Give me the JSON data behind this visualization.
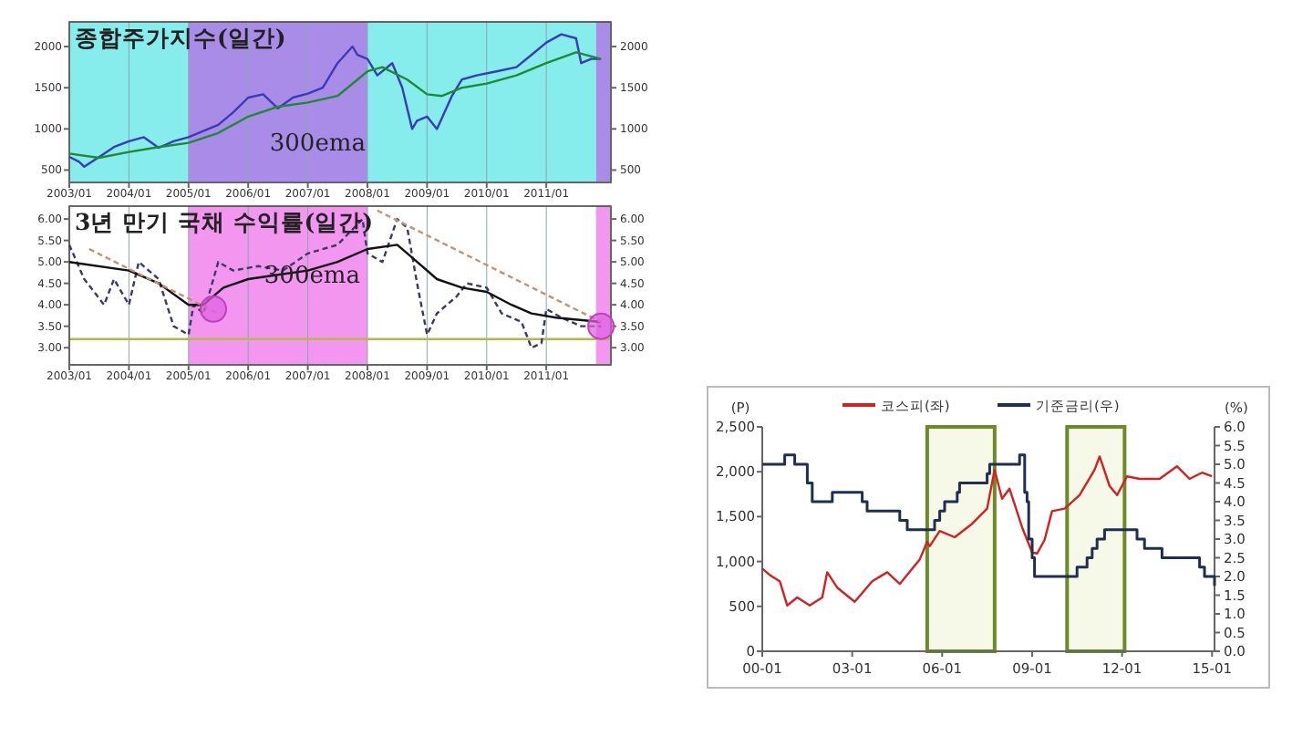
{
  "chart_data": [
    {
      "type": "line",
      "title": "종합주가지수(일간)",
      "xlim": [
        "2003-01",
        "2012-02"
      ],
      "xticks": [
        {
          "value": "2003-01",
          "label": "2003/01"
        },
        {
          "value": "2004-01",
          "label": "2004/01"
        },
        {
          "value": "2005-01",
          "label": "2005/01"
        },
        {
          "value": "2006-01",
          "label": "2006/01"
        },
        {
          "value": "2007-01",
          "label": "2007/01"
        },
        {
          "value": "2008-01",
          "label": "2008/01"
        },
        {
          "value": "2009-01",
          "label": "2009/01"
        },
        {
          "value": "2010-01",
          "label": "2010/01"
        },
        {
          "value": "2011-01",
          "label": "2011/01"
        }
      ],
      "ylim": [
        350,
        2300
      ],
      "yticks": [
        500,
        1000,
        1500,
        2000
      ],
      "y2lim": [
        350,
        2300
      ],
      "y2ticks": [
        500,
        1000,
        1500,
        2000
      ],
      "grid": "x",
      "bands": [
        {
          "axis": "x",
          "from": "2003-01",
          "to": "2005-01",
          "color": "#86ecec"
        },
        {
          "axis": "x",
          "from": "2005-01",
          "to": "2008-01",
          "color": "#a98ce8"
        },
        {
          "axis": "x",
          "from": "2008-01",
          "to": "2011-11",
          "color": "#86ecec"
        },
        {
          "axis": "x",
          "from": "2011-11",
          "to": "2012-02",
          "color": "#a98ce8"
        }
      ],
      "series": [
        {
          "color": "#3b3bb8",
          "x": [
            "2003-01",
            "2003-03",
            "2003-04",
            "2003-08",
            "2003-10",
            "2004-01",
            "2004-04",
            "2004-07",
            "2004-10",
            "2005-01",
            "2005-03",
            "2005-07",
            "2005-10",
            "2006-01",
            "2006-04",
            "2006-07",
            "2006-10",
            "2007-01",
            "2007-04",
            "2007-07",
            "2007-10",
            "2007-11",
            "2008-01",
            "2008-03",
            "2008-06",
            "2008-08",
            "2008-10",
            "2008-11",
            "2009-01",
            "2009-03",
            "2009-06",
            "2009-08",
            "2009-11",
            "2010-03",
            "2010-07",
            "2010-10",
            "2011-01",
            "2011-04",
            "2011-07",
            "2011-08",
            "2011-10",
            "2011-12"
          ],
          "values": [
            660,
            600,
            540,
            700,
            780,
            850,
            900,
            770,
            850,
            900,
            950,
            1050,
            1200,
            1380,
            1420,
            1250,
            1380,
            1430,
            1500,
            1800,
            2000,
            1900,
            1850,
            1650,
            1800,
            1500,
            1000,
            1100,
            1150,
            1000,
            1400,
            1600,
            1650,
            1700,
            1750,
            1900,
            2050,
            2150,
            2100,
            1800,
            1850,
            1850
          ]
        },
        {
          "color": "#1e8a32",
          "x": [
            "2003-01",
            "2003-07",
            "2004-01",
            "2004-07",
            "2005-01",
            "2005-07",
            "2006-01",
            "2006-07",
            "2007-01",
            "2007-07",
            "2008-01",
            "2008-04",
            "2008-09",
            "2009-01",
            "2009-04",
            "2009-08",
            "2010-01",
            "2010-07",
            "2011-01",
            "2011-07",
            "2011-12"
          ],
          "values": [
            700,
            650,
            720,
            780,
            830,
            950,
            1150,
            1270,
            1320,
            1400,
            1700,
            1750,
            1600,
            1420,
            1400,
            1500,
            1550,
            1650,
            1800,
            1930,
            1850
          ]
        }
      ],
      "annotations": [
        "300ema"
      ]
    },
    {
      "type": "line",
      "title": "3년 만기 국채 수익률(일간)",
      "xlim": [
        "2003-01",
        "2012-02"
      ],
      "xticks": [
        {
          "value": "2003-01",
          "label": "2003/01"
        },
        {
          "value": "2004-01",
          "label": "2004/01"
        },
        {
          "value": "2005-01",
          "label": "2005/01"
        },
        {
          "value": "2006-01",
          "label": "2006/01"
        },
        {
          "value": "2007-01",
          "label": "2007/01"
        },
        {
          "value": "2008-01",
          "label": "2008/01"
        },
        {
          "value": "2009-01",
          "label": "2009/01"
        },
        {
          "value": "2010-01",
          "label": "2010/01"
        },
        {
          "value": "2011-01",
          "label": "2011/01"
        }
      ],
      "ylim": [
        2.6,
        6.3
      ],
      "yticks": [
        {
          "value": 3,
          "label": "3.00"
        },
        {
          "value": 3.5,
          "label": "3.50"
        },
        {
          "value": 4,
          "label": "4.00"
        },
        {
          "value": 4.5,
          "label": "4.50"
        },
        {
          "value": 5,
          "label": "5.00"
        },
        {
          "value": 5.5,
          "label": "5.50"
        },
        {
          "value": 6,
          "label": "6.00"
        }
      ],
      "y2lim": [
        2.6,
        6.3
      ],
      "y2ticks": [
        {
          "value": 3,
          "label": "3.00"
        },
        {
          "value": 3.5,
          "label": "3.50"
        },
        {
          "value": 4,
          "label": "4.00"
        },
        {
          "value": 4.5,
          "label": "4.50"
        },
        {
          "value": 5,
          "label": "5.00"
        },
        {
          "value": 5.5,
          "label": "5.50"
        },
        {
          "value": 6,
          "label": "6.00"
        }
      ],
      "grid": "x",
      "bands": [
        {
          "axis": "x",
          "from": "2005-01",
          "to": "2008-01",
          "color": "#f296f0"
        },
        {
          "axis": "x",
          "from": "2011-11",
          "to": "2012-02",
          "color": "#f296f0"
        }
      ],
      "ref_lines": [
        {
          "axis": "y",
          "value": 3.2,
          "color": "#b5b84a"
        }
      ],
      "series": [
        {
          "color": "#3a3a66",
          "line_style": "dashed",
          "x": [
            "2003-01",
            "2003-04",
            "2003-08",
            "2003-10",
            "2004-01",
            "2004-03",
            "2004-07",
            "2004-10",
            "2005-01",
            "2005-02",
            "2005-04",
            "2005-07",
            "2005-10",
            "2006-03",
            "2006-08",
            "2007-01",
            "2007-07",
            "2007-12",
            "2008-01",
            "2008-04",
            "2008-07",
            "2008-09",
            "2008-11",
            "2009-01",
            "2009-03",
            "2009-07",
            "2009-09",
            "2010-01",
            "2010-04",
            "2010-08",
            "2010-10",
            "2010-12",
            "2011-01",
            "2011-04",
            "2011-08",
            "2011-12"
          ],
          "values": [
            5.4,
            4.6,
            4.0,
            4.6,
            4.0,
            5.0,
            4.6,
            3.5,
            3.3,
            4.0,
            3.8,
            5.0,
            4.8,
            4.9,
            4.8,
            5.2,
            5.4,
            6.0,
            5.2,
            5.0,
            6.0,
            5.8,
            4.5,
            3.3,
            3.8,
            4.2,
            4.5,
            4.4,
            3.8,
            3.6,
            3.0,
            3.1,
            3.9,
            3.7,
            3.5,
            3.5
          ]
        },
        {
          "color": "#111111",
          "x": [
            "2003-01",
            "2004-01",
            "2004-07",
            "2005-01",
            "2005-04",
            "2005-08",
            "2006-01",
            "2006-07",
            "2007-01",
            "2007-07",
            "2008-01",
            "2008-07",
            "2008-10",
            "2009-03",
            "2009-08",
            "2010-01",
            "2010-06",
            "2010-10",
            "2011-03",
            "2011-12"
          ],
          "values": [
            5.0,
            4.8,
            4.5,
            4.0,
            4.0,
            4.4,
            4.6,
            4.7,
            4.8,
            5.0,
            5.3,
            5.4,
            5.1,
            4.6,
            4.4,
            4.3,
            4.0,
            3.8,
            3.7,
            3.6
          ]
        },
        {
          "color": "#c89070",
          "line_style": "dashed",
          "x": [
            "2003-05",
            "2005-07"
          ],
          "values": [
            5.3,
            3.8
          ]
        },
        {
          "color": "#c89070",
          "line_style": "dashed",
          "x": [
            "2008-03",
            "2011-12"
          ],
          "values": [
            6.2,
            3.6
          ]
        },
        {
          "type": "scatter",
          "color": "#e060e0",
          "marker": "circle",
          "x": [
            "2005-06",
            "2011-12"
          ],
          "values": [
            3.9,
            3.5
          ]
        }
      ],
      "annotations": [
        "300ema"
      ]
    },
    {
      "type": "line",
      "xlim": [
        "2000-01",
        "2015-02"
      ],
      "xticks": [
        {
          "value": "2000-01",
          "label": "00-01"
        },
        {
          "value": "2003-01",
          "label": "03-01"
        },
        {
          "value": "2006-01",
          "label": "06-01"
        },
        {
          "value": "2009-01",
          "label": "09-01"
        },
        {
          "value": "2012-01",
          "label": "12-01"
        },
        {
          "value": "2015-01",
          "label": "15-01"
        }
      ],
      "ylim": [
        0,
        2500
      ],
      "yticks": [
        {
          "value": 0,
          "label": "0"
        },
        {
          "value": 500,
          "label": "500"
        },
        {
          "value": 1000,
          "label": "1,000"
        },
        {
          "value": 1500,
          "label": "1,500"
        },
        {
          "value": 2000,
          "label": "2,000"
        },
        {
          "value": 2500,
          "label": "2,500"
        }
      ],
      "y2lim": [
        0,
        6
      ],
      "y2ticks": [
        {
          "value": 0,
          "label": "0.0"
        },
        {
          "value": 0.5,
          "label": "0.5"
        },
        {
          "value": 1,
          "label": "1.0"
        },
        {
          "value": 1.5,
          "label": "1.5"
        },
        {
          "value": 2,
          "label": "2.0"
        },
        {
          "value": 2.5,
          "label": "2.5"
        },
        {
          "value": 3,
          "label": "3.0"
        },
        {
          "value": 3.5,
          "label": "3.5"
        },
        {
          "value": 4,
          "label": "4.0"
        },
        {
          "value": 4.5,
          "label": "4.5"
        },
        {
          "value": 5,
          "label": "5.0"
        },
        {
          "value": 5.5,
          "label": "5.5"
        },
        {
          "value": 6,
          "label": "6.0"
        }
      ],
      "ylabel": "(P)",
      "y2label": "(%)",
      "legend": "top",
      "bands": [
        {
          "axis": "x",
          "from": "2005-07",
          "to": "2007-10",
          "color": "#f7f9e8"
        },
        {
          "axis": "x",
          "from": "2010-03",
          "to": "2012-02",
          "color": "#f7f9e8"
        }
      ],
      "series": [
        {
          "name": "코스피(좌)",
          "color": "#d42020",
          "x": [
            "2000-01",
            "2000-04",
            "2000-08",
            "2000-11",
            "2001-03",
            "2001-08",
            "2002-01",
            "2002-03",
            "2002-07",
            "2003-02",
            "2003-09",
            "2004-03",
            "2004-08",
            "2005-04",
            "2005-07",
            "2005-08",
            "2005-12",
            "2006-06",
            "2007-01",
            "2007-07",
            "2007-10",
            "2008-01",
            "2008-04",
            "2008-09",
            "2009-01",
            "2009-03",
            "2009-06",
            "2009-09",
            "2010-02",
            "2010-08",
            "2011-02",
            "2011-04",
            "2011-08",
            "2011-11",
            "2012-03",
            "2012-08",
            "2013-04",
            "2013-11",
            "2014-04",
            "2014-09",
            "2015-01"
          ],
          "values": [
            920,
            850,
            780,
            510,
            600,
            510,
            600,
            880,
            710,
            550,
            780,
            880,
            750,
            1020,
            1220,
            1170,
            1340,
            1270,
            1420,
            1590,
            2020,
            1700,
            1810,
            1380,
            1100,
            1090,
            1240,
            1560,
            1590,
            1740,
            2020,
            2170,
            1840,
            1740,
            1950,
            1920,
            1920,
            2060,
            1920,
            1990,
            1950
          ]
        },
        {
          "name": "기준금리(우)",
          "type": "step",
          "axis": "y2",
          "color": "#1f2f4f",
          "x": [
            "2000-01",
            "2000-10",
            "2001-02",
            "2001-07",
            "2001-09",
            "2002-05",
            "2003-05",
            "2003-07",
            "2004-08",
            "2004-11",
            "2005-10",
            "2005-12",
            "2006-02",
            "2006-07",
            "2006-08",
            "2007-07",
            "2007-08",
            "2008-08",
            "2008-10",
            "2008-11-01",
            "2008-11-20",
            "2009-01",
            "2009-02",
            "2010-07",
            "2010-11",
            "2011-01",
            "2011-03",
            "2011-06",
            "2012-07",
            "2012-10",
            "2013-05",
            "2014-08",
            "2014-10",
            "2015-02"
          ],
          "values": [
            5.0,
            5.25,
            5.0,
            4.5,
            4.0,
            4.25,
            4.0,
            3.75,
            3.5,
            3.25,
            3.5,
            3.75,
            4.0,
            4.25,
            4.5,
            4.75,
            5.0,
            5.25,
            4.25,
            4.0,
            3.0,
            2.5,
            2.0,
            2.25,
            2.5,
            2.75,
            3.0,
            3.25,
            3.0,
            2.75,
            2.5,
            2.25,
            2.0,
            1.75
          ]
        }
      ]
    }
  ]
}
